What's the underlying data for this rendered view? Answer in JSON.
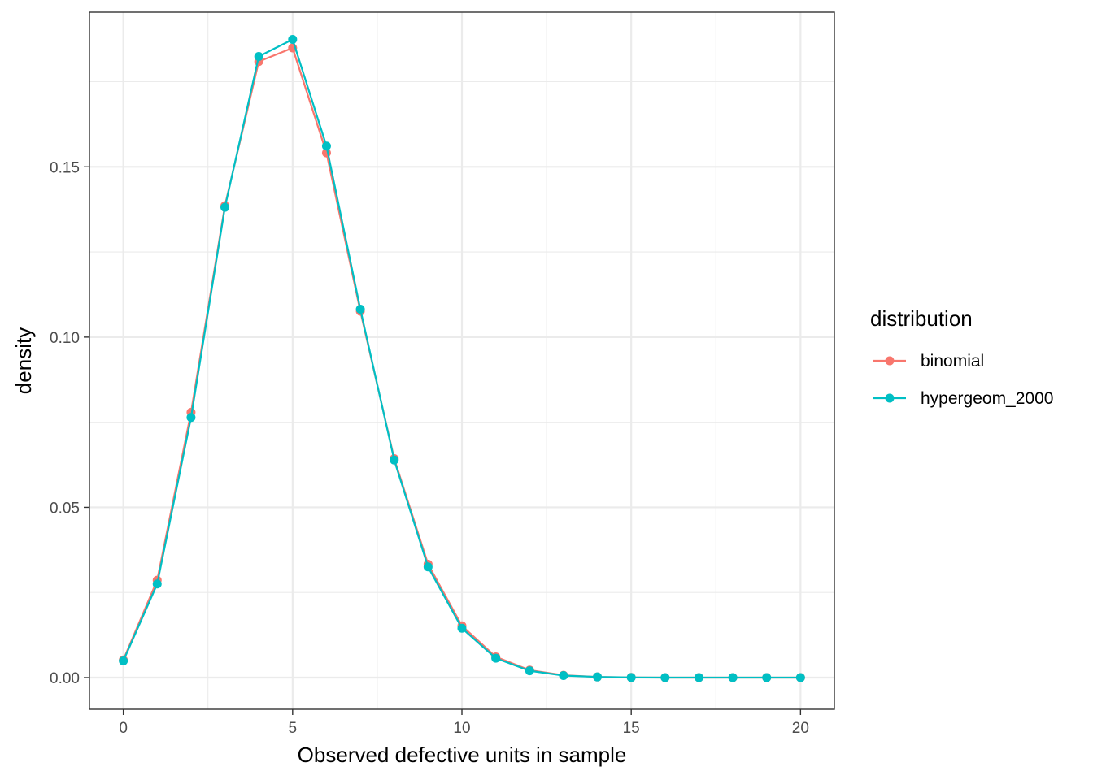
{
  "chart_data": {
    "type": "line",
    "xlabel": "Observed defective units in sample",
    "ylabel": "density",
    "x": [
      0,
      1,
      2,
      3,
      4,
      5,
      6,
      7,
      8,
      9,
      10,
      11,
      12,
      13,
      14,
      15,
      16,
      17,
      18,
      19,
      20
    ],
    "xticks": [
      0,
      5,
      10,
      15,
      20
    ],
    "xtick_labels": [
      "0",
      "5",
      "10",
      "15",
      "20"
    ],
    "yticks": [
      0.0,
      0.05,
      0.1,
      0.15
    ],
    "ytick_labels": [
      "0.00",
      "0.05",
      "0.10",
      "0.15"
    ],
    "xlim": [
      -1,
      21
    ],
    "ylim": [
      -0.0093,
      0.1954
    ],
    "grid": true,
    "legend": {
      "title": "distribution",
      "position": "right"
    },
    "series": [
      {
        "name": "binomial",
        "color": "#F8766D",
        "values": [
          0.0052,
          0.0286,
          0.0779,
          0.1386,
          0.1809,
          0.1849,
          0.1541,
          0.1076,
          0.0643,
          0.0333,
          0.0152,
          0.0061,
          0.0022,
          0.0007,
          0.0002,
          5e-05,
          1e-05,
          0.0,
          0.0,
          0.0,
          0.0
        ]
      },
      {
        "name": "hypergeom_2000",
        "color": "#00BFC4",
        "values": [
          0.0049,
          0.0275,
          0.0764,
          0.1381,
          0.1824,
          0.1874,
          0.1561,
          0.1082,
          0.0639,
          0.0325,
          0.0145,
          0.0057,
          0.002,
          0.0006,
          0.0002,
          4e-05,
          1e-05,
          0.0,
          0.0,
          0.0,
          0.0
        ]
      }
    ]
  }
}
